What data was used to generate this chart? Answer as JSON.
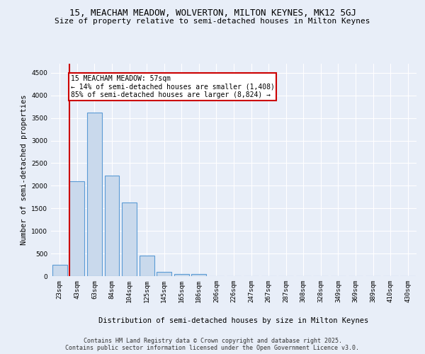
{
  "title": "15, MEACHAM MEADOW, WOLVERTON, MILTON KEYNES, MK12 5GJ",
  "subtitle": "Size of property relative to semi-detached houses in Milton Keynes",
  "xlabel": "Distribution of semi-detached houses by size in Milton Keynes",
  "ylabel": "Number of semi-detached properties",
  "categories": [
    "23sqm",
    "43sqm",
    "63sqm",
    "84sqm",
    "104sqm",
    "125sqm",
    "145sqm",
    "165sqm",
    "186sqm",
    "206sqm",
    "226sqm",
    "247sqm",
    "267sqm",
    "287sqm",
    "308sqm",
    "328sqm",
    "349sqm",
    "369sqm",
    "389sqm",
    "410sqm",
    "430sqm"
  ],
  "values": [
    250,
    2100,
    3620,
    2220,
    1630,
    450,
    100,
    50,
    40,
    0,
    0,
    0,
    0,
    0,
    0,
    0,
    0,
    0,
    0,
    0,
    0
  ],
  "bar_color": "#c9d9ec",
  "bar_edge_color": "#5b9bd5",
  "annotation_text": "15 MEACHAM MEADOW: 57sqm\n← 14% of semi-detached houses are smaller (1,408)\n85% of semi-detached houses are larger (8,824) →",
  "annotation_box_color": "#ffffff",
  "annotation_box_edge": "#cc0000",
  "vline_color": "#cc0000",
  "ylim": [
    0,
    4700
  ],
  "yticks": [
    0,
    500,
    1000,
    1500,
    2000,
    2500,
    3000,
    3500,
    4000,
    4500
  ],
  "background_color": "#e8eef8",
  "grid_color": "#ffffff",
  "footer": "Contains HM Land Registry data © Crown copyright and database right 2025.\nContains public sector information licensed under the Open Government Licence v3.0.",
  "title_fontsize": 9,
  "subtitle_fontsize": 8,
  "axis_label_fontsize": 7.5,
  "tick_fontsize": 6.5,
  "annotation_fontsize": 7,
  "footer_fontsize": 6
}
